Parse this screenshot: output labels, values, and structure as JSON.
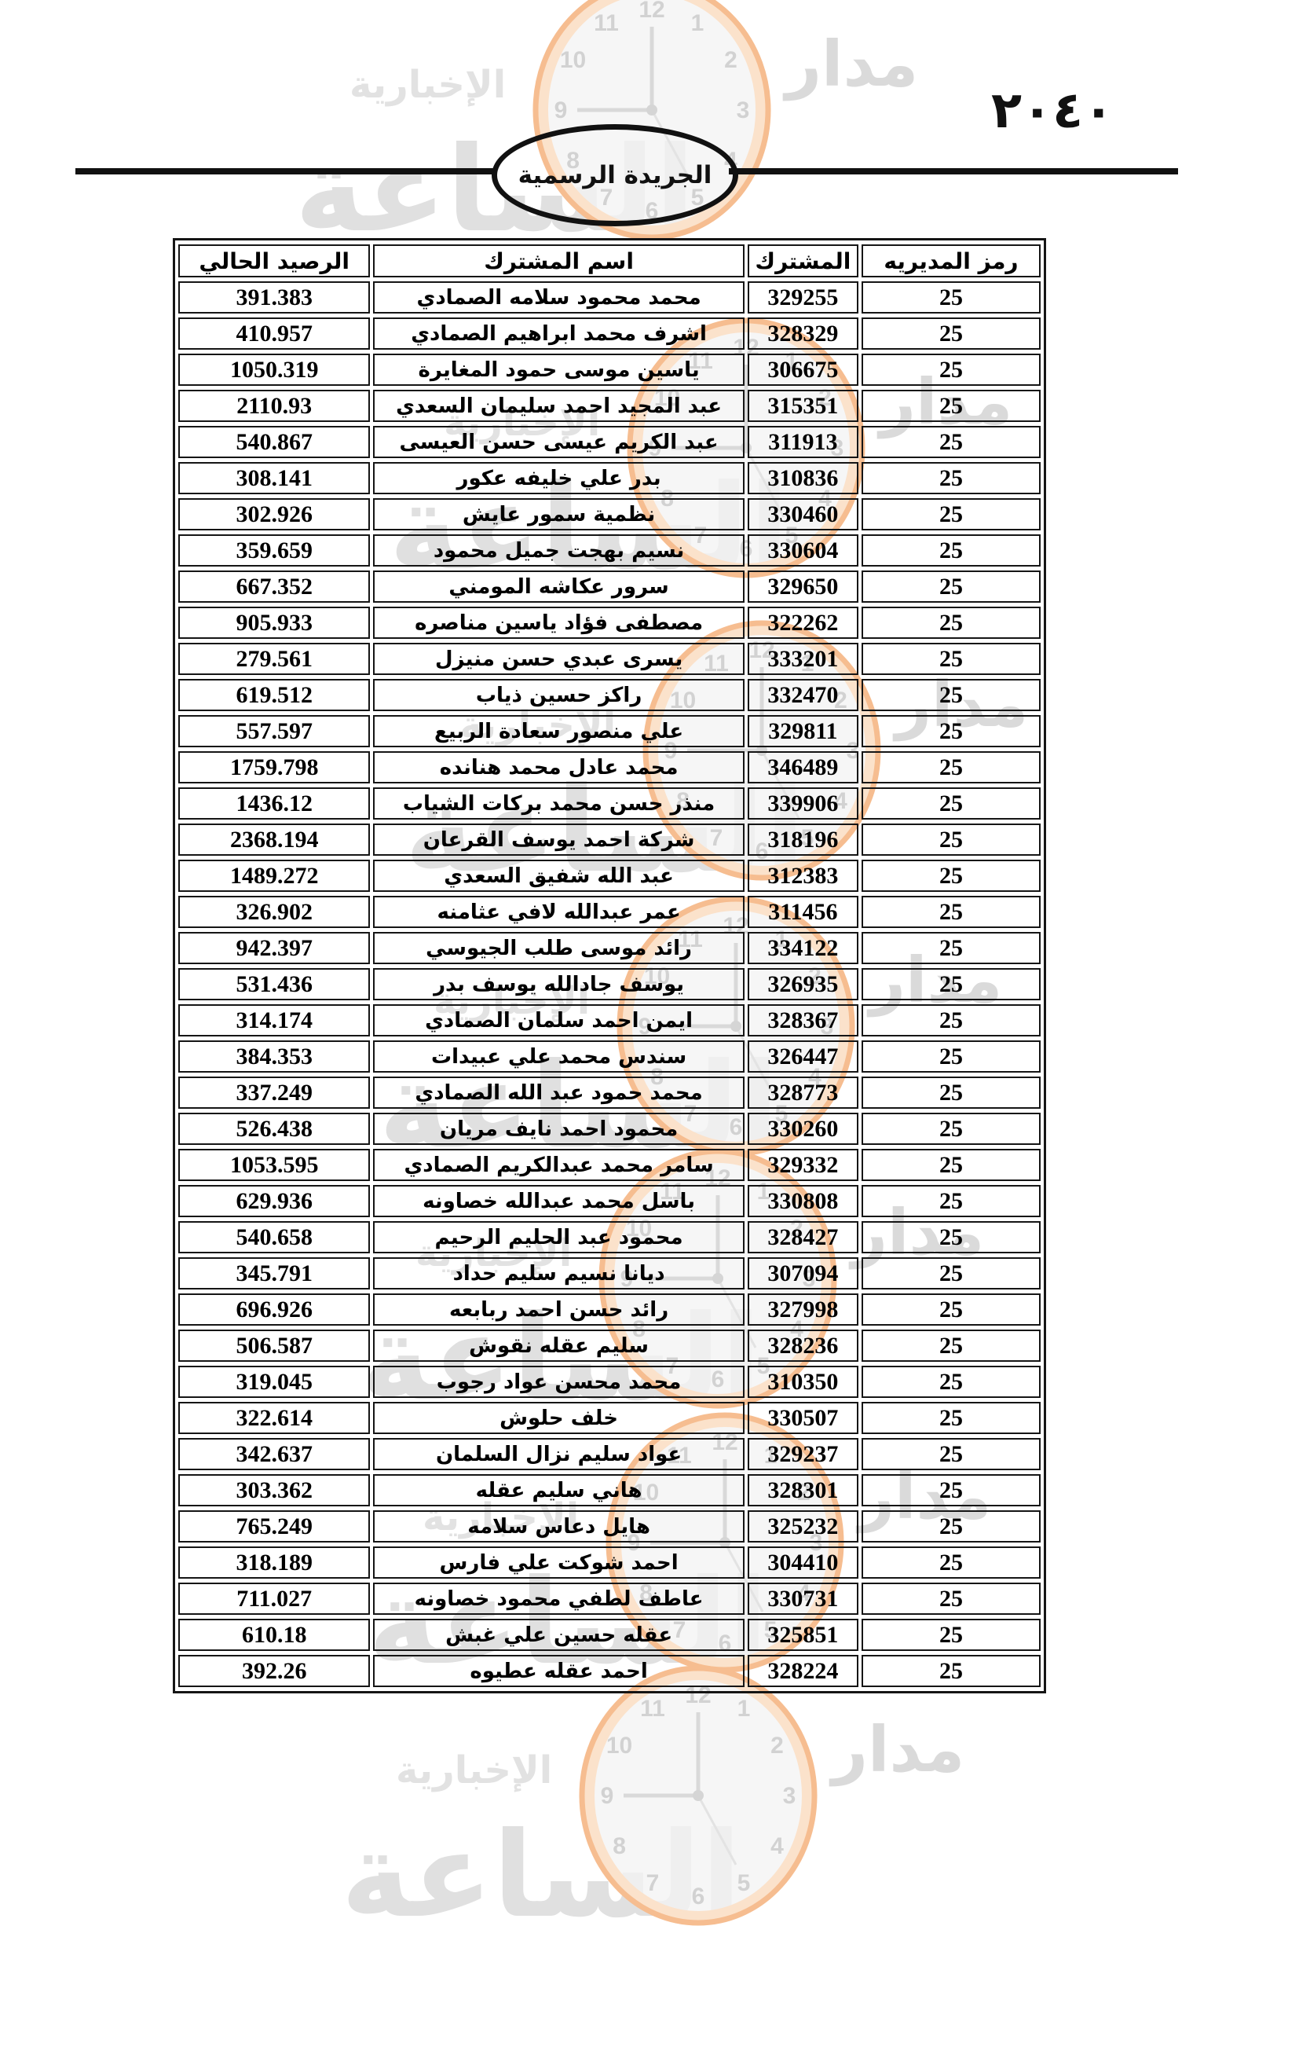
{
  "page": {
    "number_arabic": "٢٠٤٠",
    "gazette_label": "الجريدة الرسمية"
  },
  "watermark": {
    "brand_top": "مدار",
    "brand_bottom": "الساعة",
    "brand_tagline": "الإخبارية",
    "clock_numbers": [
      "12",
      "1",
      "2",
      "3",
      "4",
      "5",
      "6",
      "7",
      "8",
      "9",
      "10",
      "11"
    ],
    "accent_color": "#f6bd90",
    "text_color": "#dadada"
  },
  "table": {
    "headers": {
      "code": "رمز المديريه",
      "subscriber": "المشترك",
      "name": "اسم المشترك",
      "balance": "الرصيد الحالي"
    },
    "rows": [
      {
        "code": "25",
        "subscriber": "329255",
        "name": "محمد محمود سلامه الصمادي",
        "balance": "391.383"
      },
      {
        "code": "25",
        "subscriber": "328329",
        "name": "اشرف محمد ابراهيم الصمادي",
        "balance": "410.957"
      },
      {
        "code": "25",
        "subscriber": "306675",
        "name": "ياسين موسى حمود المغايرة",
        "balance": "1050.319"
      },
      {
        "code": "25",
        "subscriber": "315351",
        "name": "عبد المجيد احمد سليمان السعدي",
        "balance": "2110.93"
      },
      {
        "code": "25",
        "subscriber": "311913",
        "name": "عبد الكريم عيسى حسن العيسى",
        "balance": "540.867"
      },
      {
        "code": "25",
        "subscriber": "310836",
        "name": "بدر علي خليفه عكور",
        "balance": "308.141"
      },
      {
        "code": "25",
        "subscriber": "330460",
        "name": "نظمية سمور عايش",
        "balance": "302.926"
      },
      {
        "code": "25",
        "subscriber": "330604",
        "name": "نسيم بهجت جميل محمود",
        "balance": "359.659"
      },
      {
        "code": "25",
        "subscriber": "329650",
        "name": "سرور عكاشه المومني",
        "balance": "667.352"
      },
      {
        "code": "25",
        "subscriber": "322262",
        "name": "مصطفى فؤاد ياسين مناصره",
        "balance": "905.933"
      },
      {
        "code": "25",
        "subscriber": "333201",
        "name": "يسرى عبدي حسن منيزل",
        "balance": "279.561"
      },
      {
        "code": "25",
        "subscriber": "332470",
        "name": "راكز حسين ذياب",
        "balance": "619.512"
      },
      {
        "code": "25",
        "subscriber": "329811",
        "name": "علي منصور سعادة الربيع",
        "balance": "557.597"
      },
      {
        "code": "25",
        "subscriber": "346489",
        "name": "محمد عادل محمد هنانده",
        "balance": "1759.798"
      },
      {
        "code": "25",
        "subscriber": "339906",
        "name": "منذر حسن محمد بركات الشياب",
        "balance": "1436.12"
      },
      {
        "code": "25",
        "subscriber": "318196",
        "name": "شركة احمد يوسف القرعان",
        "balance": "2368.194"
      },
      {
        "code": "25",
        "subscriber": "312383",
        "name": "عبد الله شفيق السعدي",
        "balance": "1489.272"
      },
      {
        "code": "25",
        "subscriber": "311456",
        "name": "عمر عبدالله لافي عثامنه",
        "balance": "326.902"
      },
      {
        "code": "25",
        "subscriber": "334122",
        "name": "رائد موسى طلب الجيوسي",
        "balance": "942.397"
      },
      {
        "code": "25",
        "subscriber": "326935",
        "name": "يوسف جادالله يوسف بدر",
        "balance": "531.436"
      },
      {
        "code": "25",
        "subscriber": "328367",
        "name": "ايمن احمد سلمان الصمادي",
        "balance": "314.174"
      },
      {
        "code": "25",
        "subscriber": "326447",
        "name": "سندس محمد علي عبيدات",
        "balance": "384.353"
      },
      {
        "code": "25",
        "subscriber": "328773",
        "name": "محمد حمود عبد الله الصمادي",
        "balance": "337.249"
      },
      {
        "code": "25",
        "subscriber": "330260",
        "name": "محمود احمد نايف مريان",
        "balance": "526.438"
      },
      {
        "code": "25",
        "subscriber": "329332",
        "name": "سامر محمد عبدالكريم الصمادي",
        "balance": "1053.595"
      },
      {
        "code": "25",
        "subscriber": "330808",
        "name": "باسل محمد عبدالله خصاونه",
        "balance": "629.936"
      },
      {
        "code": "25",
        "subscriber": "328427",
        "name": "محمود عبد الحليم الرحيم",
        "balance": "540.658"
      },
      {
        "code": "25",
        "subscriber": "307094",
        "name": "ديانا نسيم سليم حداد",
        "balance": "345.791"
      },
      {
        "code": "25",
        "subscriber": "327998",
        "name": "رائد حسن احمد ربابعه",
        "balance": "696.926"
      },
      {
        "code": "25",
        "subscriber": "328236",
        "name": "سليم عقله نقوش",
        "balance": "506.587"
      },
      {
        "code": "25",
        "subscriber": "310350",
        "name": "محمد محسن عواد رجوب",
        "balance": "319.045"
      },
      {
        "code": "25",
        "subscriber": "330507",
        "name": "خلف حلوش",
        "balance": "322.614"
      },
      {
        "code": "25",
        "subscriber": "329237",
        "name": "عواد سليم نزال السلمان",
        "balance": "342.637"
      },
      {
        "code": "25",
        "subscriber": "328301",
        "name": "هاني سليم عقله",
        "balance": "303.362"
      },
      {
        "code": "25",
        "subscriber": "325232",
        "name": "هايل دعاس سلامه",
        "balance": "765.249"
      },
      {
        "code": "25",
        "subscriber": "304410",
        "name": "احمد شوكت علي فارس",
        "balance": "318.189"
      },
      {
        "code": "25",
        "subscriber": "330731",
        "name": "عاطف لطفي محمود خصاونه",
        "balance": "711.027"
      },
      {
        "code": "25",
        "subscriber": "325851",
        "name": "عقله حسين علي غبش",
        "balance": "610.18"
      },
      {
        "code": "25",
        "subscriber": "328224",
        "name": "احمد عقله عطيوه",
        "balance": "392.26"
      }
    ]
  }
}
